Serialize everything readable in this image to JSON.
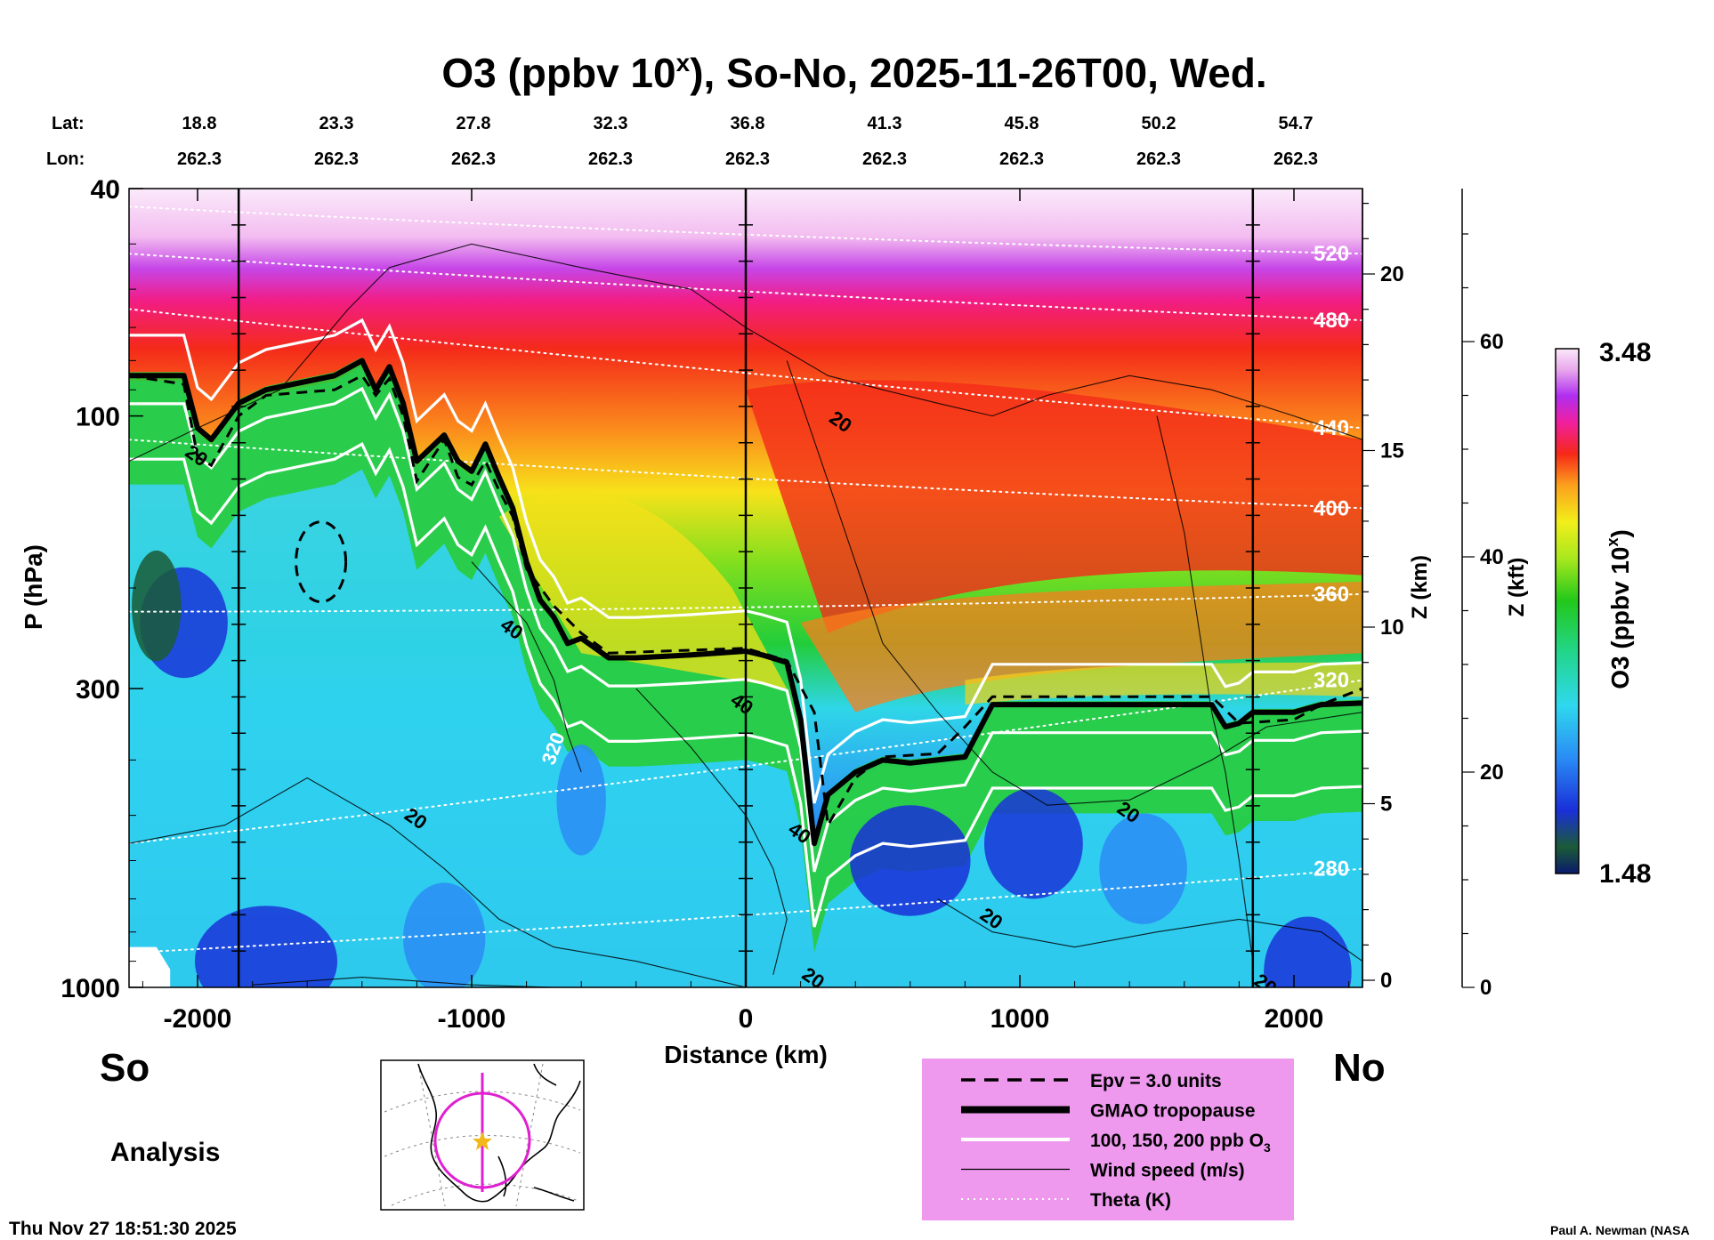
{
  "chart_data": {
    "type": "heatmap",
    "title": "O3 (ppbv 10",
    "title_sup": "x",
    "title_rest": "), So-No, 2025-11-26T00, Wed.",
    "xlabel": "Distance (km)",
    "ylabel": "P (hPa)",
    "zlabel_km": "Z (km)",
    "zlabel_kft": "Z (kft)",
    "colorbar_label": "O3 (ppbv 10",
    "colorbar_label_sup": "x",
    "colorbar_label_end": ")",
    "colorbar_min": "1.48",
    "colorbar_max": "3.48",
    "colorbar_range": [
      1.48,
      3.48
    ],
    "xlim": [
      -2250,
      2250
    ],
    "ylim_hpa": [
      1000,
      40
    ],
    "x_ticks": [
      -2000,
      -1000,
      0,
      1000,
      2000
    ],
    "y_ticks": [
      40,
      100,
      300,
      1000
    ],
    "z_km_ticks": [
      0,
      5,
      10,
      15,
      20
    ],
    "z_kft_ticks": [
      0,
      20,
      40,
      60
    ],
    "lat_label": "Lat:",
    "lon_label": "Lon:",
    "lat_values": [
      "18.8",
      "23.3",
      "27.8",
      "32.3",
      "36.8",
      "41.3",
      "45.8",
      "50.2",
      "54.7"
    ],
    "lon_values": [
      "262.3",
      "262.3",
      "262.3",
      "262.3",
      "262.3",
      "262.3",
      "262.3",
      "262.3",
      "262.3"
    ],
    "lat_lon_distance_km": [
      -2000,
      -1500,
      -1000,
      -500,
      0,
      500,
      1000,
      1500,
      2000
    ],
    "vertical_lines_km": [
      -1850,
      0,
      1850
    ],
    "tropopause": {
      "name": "GMAO tropopause",
      "x": [
        -2250,
        -2050,
        -2000,
        -1950,
        -1850,
        -1750,
        -1500,
        -1400,
        -1350,
        -1300,
        -1250,
        -1200,
        -1100,
        -1050,
        -1000,
        -950,
        -900,
        -850,
        -800,
        -750,
        -700,
        -650,
        -600,
        -500,
        -400,
        -200,
        0,
        60,
        150,
        200,
        250,
        300,
        400,
        500,
        600,
        800,
        900,
        1000,
        1200,
        1400,
        1700,
        1750,
        1800,
        1850,
        2000,
        2100,
        2250
      ],
      "p": [
        85,
        85,
        105,
        110,
        95,
        90,
        85,
        80,
        90,
        82,
        95,
        120,
        108,
        120,
        125,
        112,
        128,
        145,
        180,
        210,
        225,
        250,
        245,
        265,
        265,
        262,
        258,
        262,
        270,
        340,
        560,
        460,
        420,
        400,
        405,
        395,
        320,
        320,
        320,
        320,
        320,
        350,
        345,
        330,
        330,
        320,
        318
      ]
    },
    "pv_contour": {
      "name": "Epv = 3.0 units",
      "x": [
        -2250,
        -2050,
        -2000,
        -1950,
        -1850,
        -1750,
        -1500,
        -1400,
        -1350,
        -1300,
        -1250,
        -1200,
        -1100,
        -1050,
        -1000,
        -950,
        -900,
        -850,
        -800,
        -700,
        -600,
        -500,
        -300,
        0,
        150,
        250,
        300,
        400,
        500,
        700,
        800,
        900,
        1000,
        1400,
        1700,
        1800,
        2000,
        2100,
        2250
      ],
      "p": [
        85,
        88,
        118,
        122,
        100,
        92,
        90,
        85,
        92,
        86,
        100,
        130,
        110,
        128,
        132,
        120,
        135,
        150,
        185,
        215,
        240,
        260,
        258,
        255,
        268,
        330,
        520,
        430,
        395,
        390,
        350,
        310,
        310,
        310,
        310,
        345,
        340,
        320,
        300
      ]
    },
    "theta_levels": [
      {
        "value": 280,
        "label": "280",
        "p_left": 870,
        "p_right": 620
      },
      {
        "value": 320,
        "label": "320",
        "p_left": 560,
        "p_right": 290
      },
      {
        "value": 360,
        "label": "360",
        "p_left": 220,
        "p_right": 205
      },
      {
        "value": 400,
        "label": "400",
        "p_left": 110,
        "p_right": 145
      },
      {
        "value": 440,
        "label": "440",
        "p_left": 65,
        "p_right": 105
      },
      {
        "value": 480,
        "label": "480",
        "p_left": 52,
        "p_right": 68
      },
      {
        "value": 520,
        "label": "520",
        "p_left": 43,
        "p_right": 52
      }
    ],
    "wind_labels": [
      "20",
      "20",
      "40",
      "20",
      "40",
      "40",
      "20",
      "20",
      "20",
      "20"
    ],
    "wind_label_points": [
      {
        "x": -2050,
        "p": 117
      },
      {
        "x": -1250,
        "p": 505
      },
      {
        "x": -900,
        "p": 235
      },
      {
        "x": 200,
        "p": 960
      },
      {
        "x": -60,
        "p": 318
      },
      {
        "x": 150,
        "p": 535
      },
      {
        "x": 300,
        "p": 102
      },
      {
        "x": 850,
        "p": 755
      },
      {
        "x": 1350,
        "p": 492
      },
      {
        "x": 1850,
        "p": 985
      }
    ],
    "o3_contour_labels": [
      "320"
    ],
    "o3_contour_label_points": [
      {
        "x": -700,
        "p": 410
      }
    ],
    "legend": {
      "entries": [
        {
          "label": "Epv = 3.0 units",
          "style": "dashed"
        },
        {
          "label": "GMAO tropopause",
          "style": "thick"
        },
        {
          "label": "100, 150, 200 ppb O",
          "sub": "3",
          "style": "white"
        },
        {
          "label": "Wind speed (m/s)",
          "style": "thin"
        },
        {
          "label": "Theta (K)",
          "style": "dotted"
        }
      ],
      "background": "#ee99ee"
    },
    "so_label": "So",
    "no_label": "No",
    "analysis_label": "Analysis",
    "timestamp": "Thu Nov 27 18:51:30 2025",
    "credit": "Paul A. Newman (NASA"
  }
}
